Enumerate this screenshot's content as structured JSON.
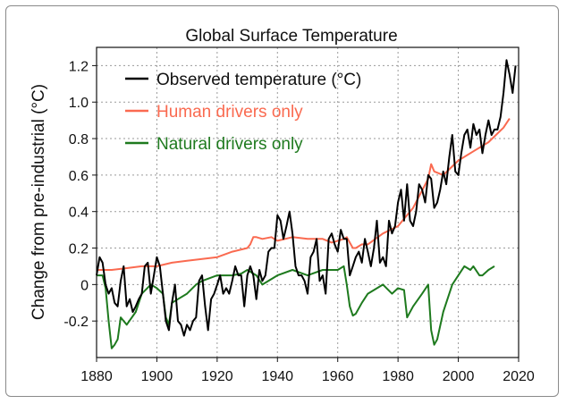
{
  "chart_data": {
    "type": "line",
    "title": "Global Surface Temperature",
    "xlabel": "",
    "ylabel": "Change from pre-industrial (°C)",
    "xlim": [
      1880,
      2020
    ],
    "ylim": [
      -0.4,
      1.3
    ],
    "x_ticks": [
      "1880",
      "1900",
      "1920",
      "1940",
      "1960",
      "1980",
      "2000",
      "2020"
    ],
    "y_ticks": [
      "-0.2",
      "0",
      "0.2",
      "0.4",
      "0.6",
      "0.8",
      "1.0",
      "1.2"
    ],
    "grid": true,
    "legend_position": "top-left",
    "series": [
      {
        "name": "Observed temperature (°C)",
        "color": "#000000",
        "x": [
          1880,
          1881,
          1882,
          1883,
          1884,
          1885,
          1886,
          1887,
          1888,
          1889,
          1890,
          1891,
          1892,
          1893,
          1894,
          1895,
          1896,
          1897,
          1898,
          1899,
          1900,
          1901,
          1902,
          1903,
          1904,
          1905,
          1906,
          1907,
          1908,
          1909,
          1910,
          1911,
          1912,
          1913,
          1914,
          1915,
          1916,
          1917,
          1918,
          1919,
          1920,
          1921,
          1922,
          1923,
          1924,
          1925,
          1926,
          1927,
          1928,
          1929,
          1930,
          1931,
          1932,
          1933,
          1934,
          1935,
          1936,
          1937,
          1938,
          1939,
          1940,
          1941,
          1942,
          1943,
          1944,
          1945,
          1946,
          1947,
          1948,
          1949,
          1950,
          1951,
          1952,
          1953,
          1954,
          1955,
          1956,
          1957,
          1958,
          1959,
          1960,
          1961,
          1962,
          1963,
          1964,
          1965,
          1966,
          1967,
          1968,
          1969,
          1970,
          1971,
          1972,
          1973,
          1974,
          1975,
          1976,
          1977,
          1978,
          1979,
          1980,
          1981,
          1982,
          1983,
          1984,
          1985,
          1986,
          1987,
          1988,
          1989,
          1990,
          1991,
          1992,
          1993,
          1994,
          1995,
          1996,
          1997,
          1998,
          1999,
          2000,
          2001,
          2002,
          2003,
          2004,
          2005,
          2006,
          2007,
          2008,
          2009,
          2010,
          2011,
          2012,
          2013,
          2014,
          2015,
          2016,
          2017,
          2018,
          2019
        ],
        "values": [
          0.05,
          0.15,
          0.12,
          0.0,
          -0.05,
          -0.02,
          -0.1,
          -0.12,
          0.02,
          0.1,
          -0.12,
          -0.08,
          -0.15,
          -0.12,
          -0.08,
          -0.05,
          0.1,
          0.12,
          -0.05,
          0.05,
          0.15,
          0.1,
          -0.05,
          -0.2,
          -0.25,
          -0.1,
          0.0,
          -0.2,
          -0.22,
          -0.28,
          -0.22,
          -0.25,
          -0.2,
          -0.18,
          0.02,
          0.05,
          -0.12,
          -0.25,
          -0.08,
          -0.05,
          0.0,
          0.05,
          -0.05,
          -0.02,
          -0.05,
          0.02,
          0.1,
          0.05,
          0.05,
          -0.12,
          0.05,
          0.1,
          0.05,
          -0.08,
          0.08,
          0.02,
          0.05,
          0.18,
          0.2,
          0.2,
          0.38,
          0.35,
          0.25,
          0.32,
          0.4,
          0.28,
          0.1,
          0.05,
          0.05,
          0.02,
          -0.05,
          0.15,
          0.18,
          0.25,
          0.02,
          0.05,
          -0.05,
          0.25,
          0.28,
          0.22,
          0.18,
          0.3,
          0.25,
          0.25,
          0.05,
          0.1,
          0.15,
          0.18,
          0.12,
          0.25,
          0.18,
          0.1,
          0.2,
          0.35,
          0.12,
          0.15,
          0.1,
          0.35,
          0.28,
          0.32,
          0.45,
          0.52,
          0.35,
          0.55,
          0.35,
          0.32,
          0.4,
          0.55,
          0.52,
          0.45,
          0.6,
          0.58,
          0.42,
          0.45,
          0.52,
          0.62,
          0.55,
          0.7,
          0.82,
          0.62,
          0.6,
          0.72,
          0.82,
          0.85,
          0.75,
          0.88,
          0.82,
          0.85,
          0.72,
          0.82,
          0.9,
          0.82,
          0.85,
          0.85,
          0.92,
          1.05,
          1.23,
          1.15,
          1.05,
          1.2
        ]
      },
      {
        "name": "Human drivers only",
        "color": "#fa6a50",
        "x": [
          1880,
          1885,
          1890,
          1895,
          1900,
          1905,
          1910,
          1915,
          1920,
          1925,
          1930,
          1931,
          1932,
          1933,
          1935,
          1938,
          1940,
          1945,
          1950,
          1955,
          1958,
          1960,
          1962,
          1963,
          1965,
          1966,
          1968,
          1970,
          1975,
          1980,
          1985,
          1990,
          1991,
          1992,
          1995,
          2000,
          2005,
          2010,
          2015,
          2017
        ],
        "values": [
          0.08,
          0.08,
          0.09,
          0.1,
          0.1,
          0.12,
          0.13,
          0.14,
          0.15,
          0.18,
          0.2,
          0.22,
          0.26,
          0.26,
          0.25,
          0.26,
          0.24,
          0.26,
          0.25,
          0.25,
          0.23,
          0.24,
          0.25,
          0.26,
          0.2,
          0.2,
          0.22,
          0.22,
          0.28,
          0.32,
          0.42,
          0.58,
          0.66,
          0.62,
          0.6,
          0.68,
          0.73,
          0.78,
          0.86,
          0.91
        ]
      },
      {
        "name": "Natural drivers only",
        "color": "#1e7a1e",
        "x": [
          1880,
          1882,
          1883,
          1884,
          1885,
          1886,
          1887,
          1888,
          1890,
          1893,
          1895,
          1898,
          1900,
          1902,
          1903,
          1904,
          1905,
          1907,
          1910,
          1913,
          1915,
          1920,
          1925,
          1928,
          1930,
          1933,
          1935,
          1940,
          1945,
          1950,
          1955,
          1960,
          1962,
          1963,
          1964,
          1965,
          1966,
          1968,
          1970,
          1975,
          1978,
          1980,
          1982,
          1983,
          1985,
          1988,
          1990,
          1991,
          1992,
          1993,
          1995,
          1998,
          2000,
          2002,
          2004,
          2005,
          2007,
          2008,
          2010,
          2012
        ],
        "values": [
          0.05,
          0.05,
          -0.02,
          -0.2,
          -0.35,
          -0.33,
          -0.3,
          -0.18,
          -0.22,
          -0.15,
          -0.05,
          0.0,
          -0.02,
          -0.05,
          -0.18,
          -0.22,
          -0.1,
          -0.08,
          -0.05,
          0.0,
          0.02,
          0.05,
          0.05,
          0.06,
          0.08,
          0.05,
          0.0,
          0.05,
          0.08,
          0.05,
          0.08,
          0.08,
          0.1,
          0.0,
          -0.12,
          -0.17,
          -0.16,
          -0.1,
          -0.05,
          0.0,
          -0.05,
          -0.02,
          -0.03,
          -0.18,
          -0.12,
          -0.05,
          0.0,
          -0.25,
          -0.33,
          -0.3,
          -0.15,
          0.0,
          0.05,
          0.1,
          0.08,
          0.1,
          0.05,
          0.05,
          0.08,
          0.1
        ]
      }
    ]
  }
}
